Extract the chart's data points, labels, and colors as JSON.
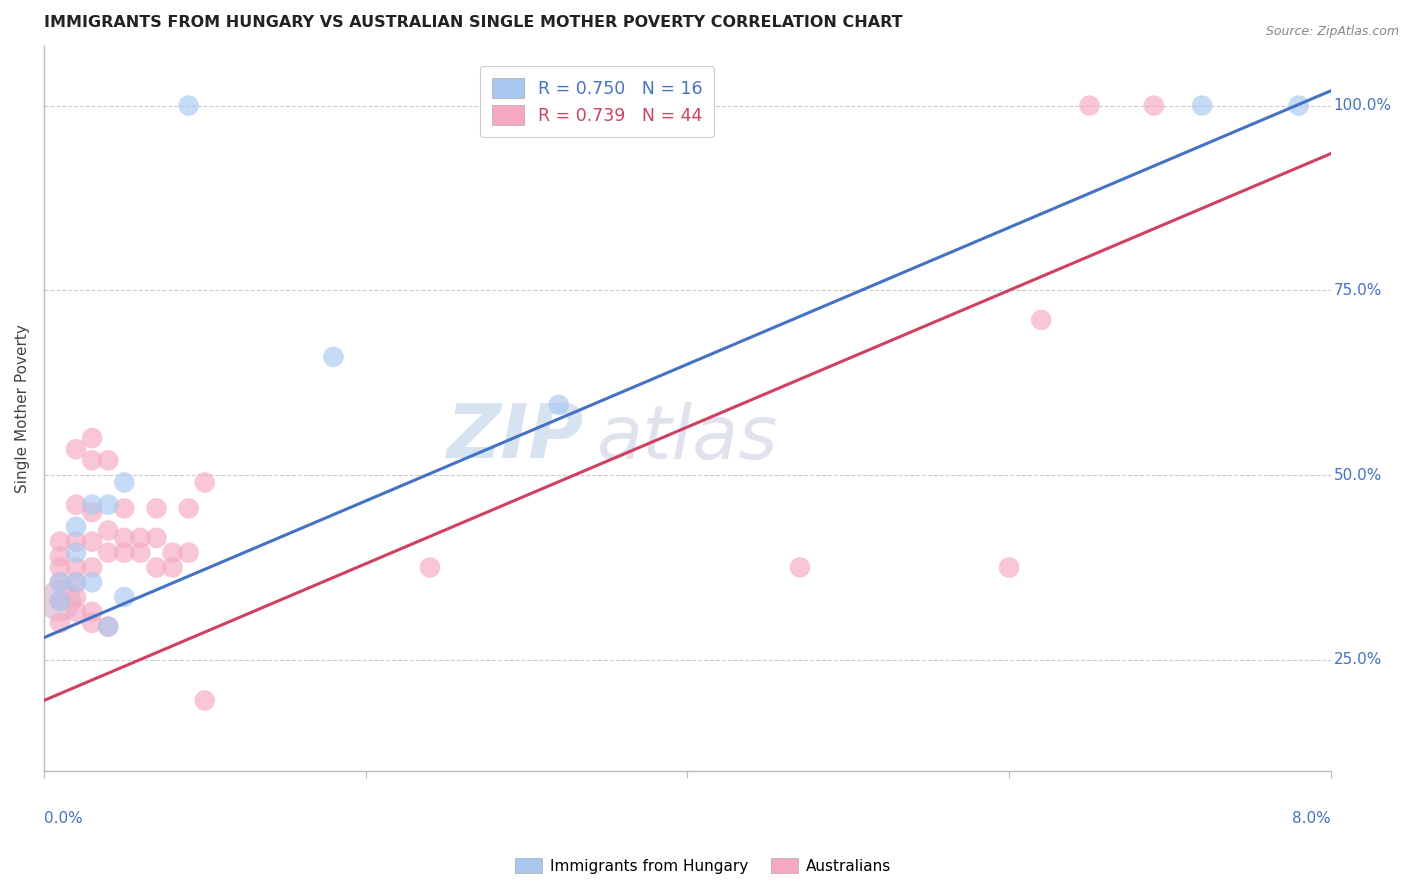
{
  "title": "IMMIGRANTS FROM HUNGARY VS AUSTRALIAN SINGLE MOTHER POVERTY CORRELATION CHART",
  "source": "Source: ZipAtlas.com",
  "ylabel": "Single Mother Poverty",
  "xlim": [
    0.0,
    0.08
  ],
  "ylim": [
    0.1,
    1.08
  ],
  "blue_R": 0.75,
  "blue_N": 16,
  "pink_R": 0.739,
  "pink_N": 44,
  "blue_color": "#A8C8F0",
  "pink_color": "#F5A8C0",
  "blue_line_color": "#4472C4",
  "pink_line_color": "#D04060",
  "legend_label_blue": "Immigrants from Hungary",
  "legend_label_pink": "Australians",
  "watermark_zip": "ZIP",
  "watermark_atlas": "atlas",
  "blue_line": [
    [
      0.0,
      0.28
    ],
    [
      0.08,
      1.02
    ]
  ],
  "pink_line": [
    [
      0.0,
      0.195
    ],
    [
      0.08,
      0.935
    ]
  ],
  "blue_points": [
    [
      0.001,
      0.33
    ],
    [
      0.001,
      0.355
    ],
    [
      0.002,
      0.355
    ],
    [
      0.002,
      0.395
    ],
    [
      0.002,
      0.43
    ],
    [
      0.003,
      0.46
    ],
    [
      0.003,
      0.355
    ],
    [
      0.004,
      0.46
    ],
    [
      0.004,
      0.295
    ],
    [
      0.005,
      0.49
    ],
    [
      0.005,
      0.335
    ],
    [
      0.009,
      1.0
    ],
    [
      0.018,
      0.66
    ],
    [
      0.032,
      0.595
    ],
    [
      0.072,
      1.0
    ],
    [
      0.078,
      1.0
    ]
  ],
  "pink_points": [
    [
      0.001,
      0.3
    ],
    [
      0.001,
      0.33
    ],
    [
      0.001,
      0.355
    ],
    [
      0.001,
      0.375
    ],
    [
      0.001,
      0.39
    ],
    [
      0.001,
      0.41
    ],
    [
      0.002,
      0.315
    ],
    [
      0.002,
      0.335
    ],
    [
      0.002,
      0.355
    ],
    [
      0.002,
      0.375
    ],
    [
      0.002,
      0.41
    ],
    [
      0.002,
      0.46
    ],
    [
      0.002,
      0.535
    ],
    [
      0.003,
      0.315
    ],
    [
      0.003,
      0.375
    ],
    [
      0.003,
      0.41
    ],
    [
      0.003,
      0.45
    ],
    [
      0.003,
      0.52
    ],
    [
      0.003,
      0.55
    ],
    [
      0.003,
      0.3
    ],
    [
      0.004,
      0.395
    ],
    [
      0.004,
      0.425
    ],
    [
      0.004,
      0.52
    ],
    [
      0.004,
      0.295
    ],
    [
      0.005,
      0.395
    ],
    [
      0.005,
      0.415
    ],
    [
      0.005,
      0.455
    ],
    [
      0.006,
      0.395
    ],
    [
      0.006,
      0.415
    ],
    [
      0.007,
      0.375
    ],
    [
      0.007,
      0.415
    ],
    [
      0.007,
      0.455
    ],
    [
      0.008,
      0.375
    ],
    [
      0.008,
      0.395
    ],
    [
      0.009,
      0.395
    ],
    [
      0.009,
      0.455
    ],
    [
      0.01,
      0.49
    ],
    [
      0.01,
      0.195
    ],
    [
      0.024,
      0.375
    ],
    [
      0.047,
      0.375
    ],
    [
      0.06,
      0.375
    ],
    [
      0.062,
      0.71
    ],
    [
      0.065,
      1.0
    ],
    [
      0.069,
      1.0
    ]
  ],
  "ytick_vals": [
    0.25,
    0.5,
    0.75,
    1.0
  ],
  "ytick_labels": [
    "25.0%",
    "50.0%",
    "75.0%",
    "100.0%"
  ],
  "xtick_vals": [
    0.0,
    0.02,
    0.04,
    0.06,
    0.08
  ],
  "xtick_labels": [
    "0.0%",
    "",
    "",
    "",
    "8.0%"
  ]
}
